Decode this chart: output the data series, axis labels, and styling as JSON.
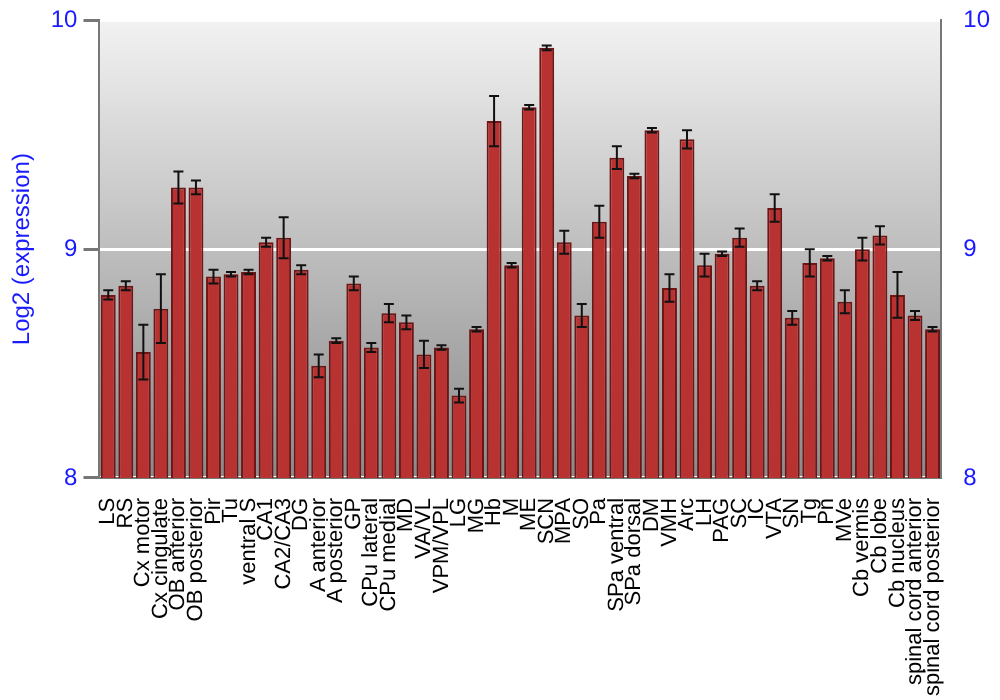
{
  "chart_data": {
    "type": "bar",
    "ylabel": "Log2 (expression)",
    "categories": [
      "LS",
      "RS",
      "Cx motor",
      "Cx cingulate",
      "OB anterior",
      "OB posterior",
      "Pir",
      "Tu",
      "ventral S",
      "CA1",
      "CA2/CA3",
      "DG",
      "A anterior",
      "A posterior",
      "GP",
      "CPu lateral",
      "CPu medial",
      "MD",
      "VA/VL",
      "VPM/VPL",
      "LG",
      "MG",
      "Hb",
      "M",
      "ME",
      "SCN",
      "MPA",
      "SO",
      "Pa",
      "SPa ventral",
      "SPa dorsal",
      "DM",
      "VMH",
      "Arc",
      "LH",
      "PAG",
      "SC",
      "IC",
      "VTA",
      "SN",
      "Tg",
      "Pn",
      "MVe",
      "Cb vermis",
      "Cb lobe",
      "Cb nucleus",
      "spinal cord anterior",
      "spinal cord posterior"
    ],
    "series": [
      {
        "color": "#b83232",
        "values": [
          8.8,
          8.84,
          8.55,
          8.74,
          9.27,
          9.27,
          8.88,
          8.89,
          8.9,
          9.03,
          9.05,
          8.91,
          8.49,
          8.6,
          8.85,
          8.57,
          8.72,
          8.68,
          8.54,
          8.57,
          8.36,
          8.65,
          9.56,
          8.93,
          9.62,
          9.88,
          9.03,
          8.71,
          9.12,
          9.4,
          9.32,
          9.52,
          8.83,
          9.48,
          8.93,
          8.98,
          9.05,
          8.84,
          9.18,
          8.7,
          8.94,
          8.96,
          8.77,
          9.0,
          9.06,
          8.8,
          8.71,
          8.65
        ],
        "errors": [
          0.02,
          0.02,
          0.12,
          0.15,
          0.07,
          0.03,
          0.03,
          0.01,
          0.01,
          0.02,
          0.09,
          0.02,
          0.05,
          0.01,
          0.03,
          0.02,
          0.04,
          0.03,
          0.06,
          0.01,
          0.03,
          0.01,
          0.11,
          0.01,
          0.01,
          0.01,
          0.05,
          0.05,
          0.07,
          0.05,
          0.01,
          0.01,
          0.06,
          0.04,
          0.05,
          0.01,
          0.04,
          0.02,
          0.06,
          0.03,
          0.06,
          0.01,
          0.05,
          0.05,
          0.04,
          0.1,
          0.02,
          0.01
        ]
      }
    ],
    "ylim": [
      8,
      10
    ],
    "yticks": [
      8,
      9,
      10
    ],
    "y2lim": [
      8,
      10
    ],
    "y2ticks": [
      8,
      9,
      10
    ],
    "grid": "y",
    "legend": false
  }
}
